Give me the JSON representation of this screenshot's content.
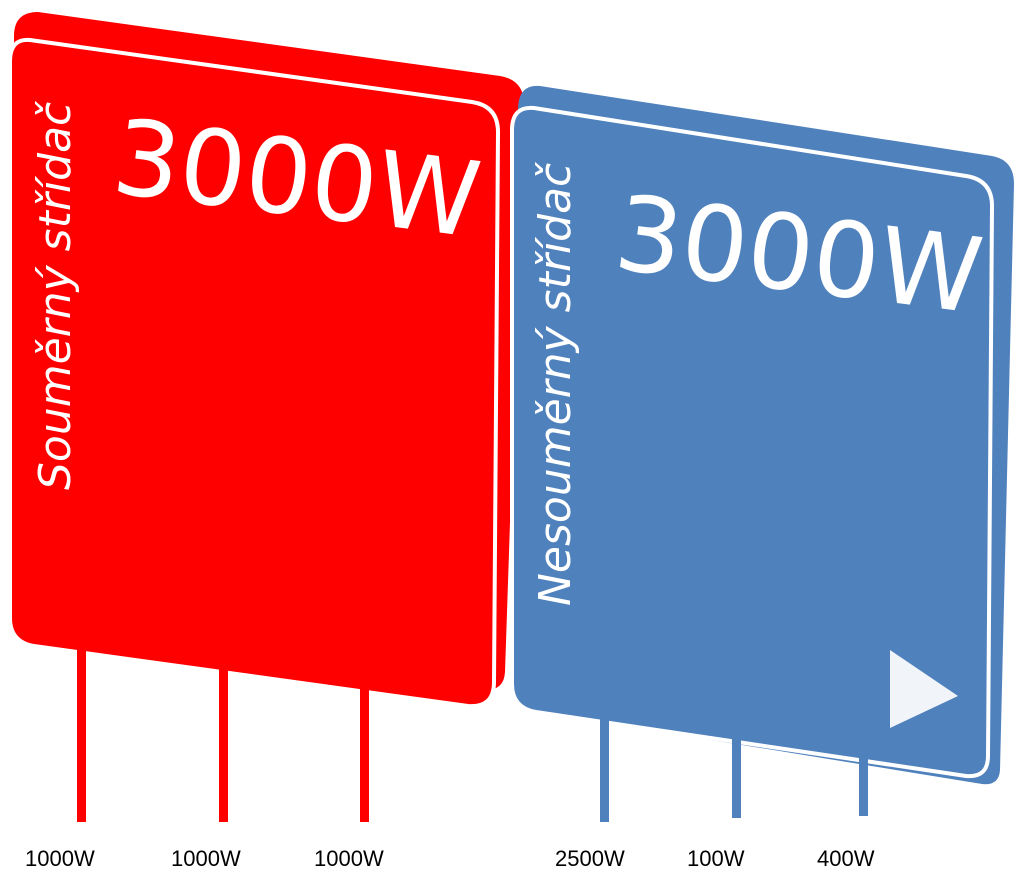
{
  "colors": {
    "symmetric": "#ff0000",
    "asymmetric": "#4f81bd",
    "text_light": "#ffffff",
    "label_text": "#000000"
  },
  "symmetric_inverter": {
    "name": "Souměrný střídač",
    "total_power": "3000W",
    "phases": [
      {
        "label": "1000W"
      },
      {
        "label": "1000W"
      },
      {
        "label": "1000W"
      }
    ]
  },
  "asymmetric_inverter": {
    "name": "Nesouměrný střídač",
    "total_power": "3000W",
    "play_icon": "play-icon",
    "phases": [
      {
        "label": "2500W"
      },
      {
        "label": "100W"
      },
      {
        "label": "400W"
      }
    ]
  }
}
